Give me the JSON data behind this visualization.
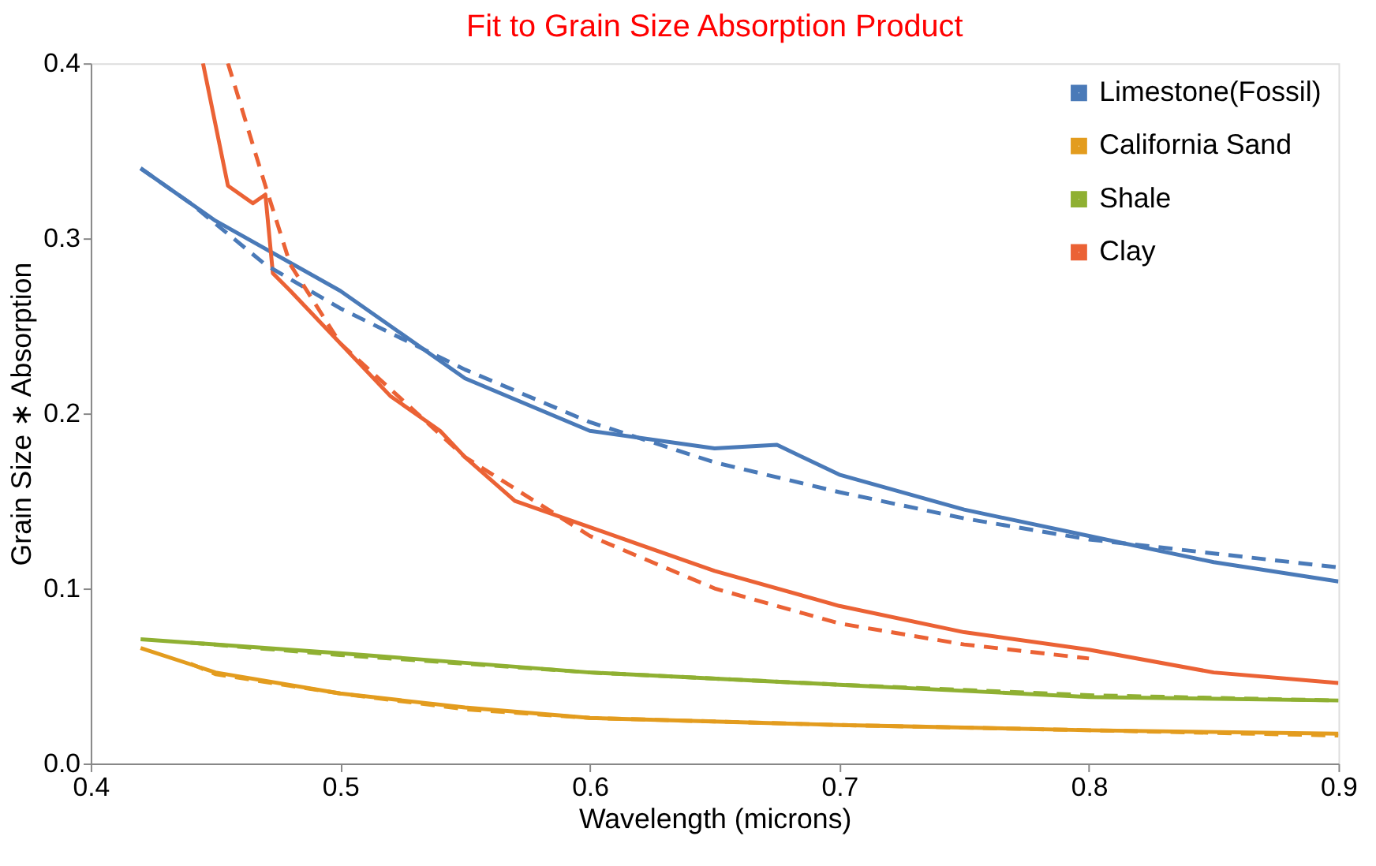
{
  "chart_data": {
    "type": "line",
    "title": "Fit to Grain Size Absorption Product",
    "xlabel": "Wavelength (microns)",
    "ylabel": "Grain Size ∗ Absorption",
    "xlim": [
      0.4,
      0.9
    ],
    "ylim": [
      0,
      0.4
    ],
    "xticks": [
      0.4,
      0.5,
      0.6,
      0.7,
      0.8,
      0.9
    ],
    "yticks": [
      {
        "value": 0,
        "label": "0.0"
      },
      {
        "value": 0.1,
        "label": "0.1"
      },
      {
        "value": 0.2,
        "label": "0.2"
      },
      {
        "value": 0.3,
        "label": "0.3"
      },
      {
        "value": 0.4,
        "label": "0.4"
      }
    ],
    "grid": false,
    "legend": "top right",
    "marker": "none",
    "series": [
      {
        "name": "Limestone(Fossil)",
        "color": "#4a7ab8",
        "line_style": "solid",
        "x": [
          0.42,
          0.45,
          0.5,
          0.55,
          0.6,
          0.65,
          0.675,
          0.7,
          0.75,
          0.8,
          0.85,
          0.9
        ],
        "values": [
          0.34,
          0.31,
          0.27,
          0.22,
          0.19,
          0.18,
          0.182,
          0.165,
          0.145,
          0.13,
          0.115,
          0.104
        ]
      },
      {
        "name": "California Sand",
        "color": "#e39c1e",
        "line_style": "solid",
        "x": [
          0.42,
          0.45,
          0.5,
          0.55,
          0.6,
          0.7,
          0.8,
          0.9
        ],
        "values": [
          0.066,
          0.052,
          0.04,
          0.032,
          0.026,
          0.022,
          0.019,
          0.017
        ]
      },
      {
        "name": "Shale",
        "color": "#8fb032",
        "line_style": "solid",
        "x": [
          0.42,
          0.5,
          0.6,
          0.7,
          0.8,
          0.9
        ],
        "values": [
          0.071,
          0.063,
          0.052,
          0.045,
          0.038,
          0.036
        ]
      },
      {
        "name": "Clay",
        "color": "#eb6235",
        "line_style": "solid",
        "x": [
          0.445,
          0.455,
          0.465,
          0.47,
          0.473,
          0.48,
          0.49,
          0.5,
          0.52,
          0.54,
          0.55,
          0.57,
          0.6,
          0.62,
          0.65,
          0.7,
          0.75,
          0.8,
          0.85,
          0.9
        ],
        "values": [
          0.4,
          0.33,
          0.32,
          0.325,
          0.28,
          0.27,
          0.255,
          0.24,
          0.21,
          0.19,
          0.175,
          0.15,
          0.135,
          0.125,
          0.11,
          0.09,
          0.075,
          0.065,
          0.052,
          0.046
        ]
      },
      {
        "color": "#4a7ab8",
        "line_style": "dashed",
        "x": [
          0.42,
          0.44,
          0.47,
          0.5,
          0.55,
          0.6,
          0.65,
          0.7,
          0.75,
          0.8,
          0.85,
          0.9
        ],
        "values": [
          0.34,
          0.32,
          0.285,
          0.26,
          0.225,
          0.195,
          0.172,
          0.155,
          0.14,
          0.128,
          0.12,
          0.112
        ]
      },
      {
        "color": "#e39c1e",
        "line_style": "dashed",
        "x": [
          0.44,
          0.45,
          0.5,
          0.55,
          0.6,
          0.7,
          0.8,
          0.9
        ],
        "values": [
          0.057,
          0.051,
          0.04,
          0.031,
          0.026,
          0.022,
          0.019,
          0.016
        ]
      },
      {
        "color": "#8fb032",
        "line_style": "dashed",
        "x": [
          0.44,
          0.5,
          0.6,
          0.7,
          0.8,
          0.9
        ],
        "values": [
          0.069,
          0.062,
          0.052,
          0.045,
          0.039,
          0.036
        ]
      },
      {
        "color": "#eb6235",
        "line_style": "dashed",
        "x": [
          0.455,
          0.47,
          0.48,
          0.5,
          0.55,
          0.6,
          0.65,
          0.7,
          0.75,
          0.8
        ],
        "values": [
          0.4,
          0.33,
          0.285,
          0.24,
          0.175,
          0.13,
          0.1,
          0.08,
          0.068,
          0.06
        ]
      }
    ]
  }
}
